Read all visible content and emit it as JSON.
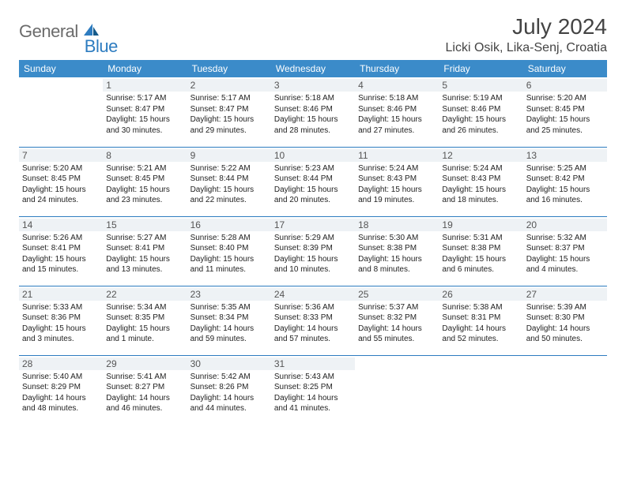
{
  "logo": {
    "text1": "General",
    "text2": "Blue"
  },
  "header": {
    "month_title": "July 2024",
    "location": "Licki Osik, Lika-Senj, Croatia"
  },
  "style": {
    "header_bg": "#3b8bc9",
    "header_fg": "#ffffff",
    "daynum_bg": "#eef2f5",
    "row_border": "#2d7cc0",
    "logo_gray": "#6b6b6b",
    "logo_blue": "#2d7cc0"
  },
  "weekdays": [
    "Sunday",
    "Monday",
    "Tuesday",
    "Wednesday",
    "Thursday",
    "Friday",
    "Saturday"
  ],
  "weeks": [
    [
      null,
      {
        "n": "1",
        "sr": "5:17 AM",
        "ss": "8:47 PM",
        "dl": "15 hours and 30 minutes."
      },
      {
        "n": "2",
        "sr": "5:17 AM",
        "ss": "8:47 PM",
        "dl": "15 hours and 29 minutes."
      },
      {
        "n": "3",
        "sr": "5:18 AM",
        "ss": "8:46 PM",
        "dl": "15 hours and 28 minutes."
      },
      {
        "n": "4",
        "sr": "5:18 AM",
        "ss": "8:46 PM",
        "dl": "15 hours and 27 minutes."
      },
      {
        "n": "5",
        "sr": "5:19 AM",
        "ss": "8:46 PM",
        "dl": "15 hours and 26 minutes."
      },
      {
        "n": "6",
        "sr": "5:20 AM",
        "ss": "8:45 PM",
        "dl": "15 hours and 25 minutes."
      }
    ],
    [
      {
        "n": "7",
        "sr": "5:20 AM",
        "ss": "8:45 PM",
        "dl": "15 hours and 24 minutes."
      },
      {
        "n": "8",
        "sr": "5:21 AM",
        "ss": "8:45 PM",
        "dl": "15 hours and 23 minutes."
      },
      {
        "n": "9",
        "sr": "5:22 AM",
        "ss": "8:44 PM",
        "dl": "15 hours and 22 minutes."
      },
      {
        "n": "10",
        "sr": "5:23 AM",
        "ss": "8:44 PM",
        "dl": "15 hours and 20 minutes."
      },
      {
        "n": "11",
        "sr": "5:24 AM",
        "ss": "8:43 PM",
        "dl": "15 hours and 19 minutes."
      },
      {
        "n": "12",
        "sr": "5:24 AM",
        "ss": "8:43 PM",
        "dl": "15 hours and 18 minutes."
      },
      {
        "n": "13",
        "sr": "5:25 AM",
        "ss": "8:42 PM",
        "dl": "15 hours and 16 minutes."
      }
    ],
    [
      {
        "n": "14",
        "sr": "5:26 AM",
        "ss": "8:41 PM",
        "dl": "15 hours and 15 minutes."
      },
      {
        "n": "15",
        "sr": "5:27 AM",
        "ss": "8:41 PM",
        "dl": "15 hours and 13 minutes."
      },
      {
        "n": "16",
        "sr": "5:28 AM",
        "ss": "8:40 PM",
        "dl": "15 hours and 11 minutes."
      },
      {
        "n": "17",
        "sr": "5:29 AM",
        "ss": "8:39 PM",
        "dl": "15 hours and 10 minutes."
      },
      {
        "n": "18",
        "sr": "5:30 AM",
        "ss": "8:38 PM",
        "dl": "15 hours and 8 minutes."
      },
      {
        "n": "19",
        "sr": "5:31 AM",
        "ss": "8:38 PM",
        "dl": "15 hours and 6 minutes."
      },
      {
        "n": "20",
        "sr": "5:32 AM",
        "ss": "8:37 PM",
        "dl": "15 hours and 4 minutes."
      }
    ],
    [
      {
        "n": "21",
        "sr": "5:33 AM",
        "ss": "8:36 PM",
        "dl": "15 hours and 3 minutes."
      },
      {
        "n": "22",
        "sr": "5:34 AM",
        "ss": "8:35 PM",
        "dl": "15 hours and 1 minute."
      },
      {
        "n": "23",
        "sr": "5:35 AM",
        "ss": "8:34 PM",
        "dl": "14 hours and 59 minutes."
      },
      {
        "n": "24",
        "sr": "5:36 AM",
        "ss": "8:33 PM",
        "dl": "14 hours and 57 minutes."
      },
      {
        "n": "25",
        "sr": "5:37 AM",
        "ss": "8:32 PM",
        "dl": "14 hours and 55 minutes."
      },
      {
        "n": "26",
        "sr": "5:38 AM",
        "ss": "8:31 PM",
        "dl": "14 hours and 52 minutes."
      },
      {
        "n": "27",
        "sr": "5:39 AM",
        "ss": "8:30 PM",
        "dl": "14 hours and 50 minutes."
      }
    ],
    [
      {
        "n": "28",
        "sr": "5:40 AM",
        "ss": "8:29 PM",
        "dl": "14 hours and 48 minutes."
      },
      {
        "n": "29",
        "sr": "5:41 AM",
        "ss": "8:27 PM",
        "dl": "14 hours and 46 minutes."
      },
      {
        "n": "30",
        "sr": "5:42 AM",
        "ss": "8:26 PM",
        "dl": "14 hours and 44 minutes."
      },
      {
        "n": "31",
        "sr": "5:43 AM",
        "ss": "8:25 PM",
        "dl": "14 hours and 41 minutes."
      },
      null,
      null,
      null
    ]
  ],
  "labels": {
    "sunrise": "Sunrise: ",
    "sunset": "Sunset: ",
    "daylight": "Daylight: "
  }
}
